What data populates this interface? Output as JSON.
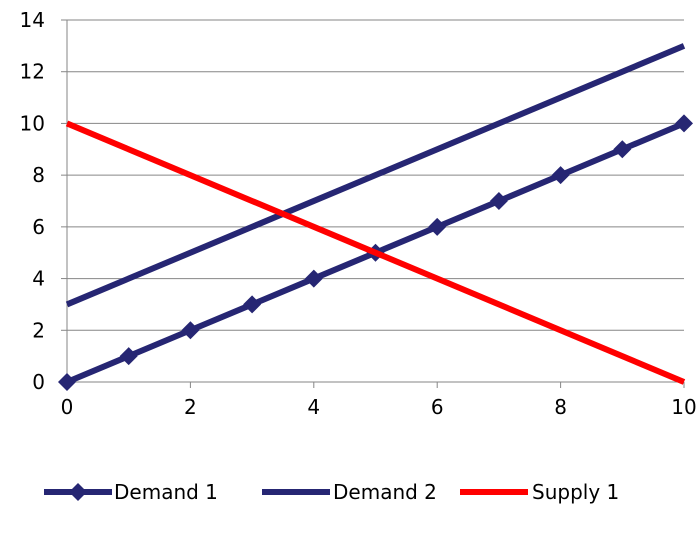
{
  "chart_data": {
    "type": "line",
    "title": "",
    "xlabel": "",
    "ylabel": "",
    "xlim": [
      0,
      10
    ],
    "ylim": [
      0,
      14
    ],
    "x_ticks": [
      0,
      2,
      4,
      6,
      8,
      10
    ],
    "y_ticks": [
      0,
      2,
      4,
      6,
      8,
      10,
      12,
      14
    ],
    "grid": "horizontal",
    "legend_position": "bottom",
    "series": [
      {
        "name": "Demand 1",
        "color": "#262673",
        "marker": "diamond",
        "x": [
          0,
          1,
          2,
          3,
          4,
          5,
          6,
          7,
          8,
          9,
          10
        ],
        "y": [
          0,
          1,
          2,
          3,
          4,
          5,
          6,
          7,
          8,
          9,
          10
        ]
      },
      {
        "name": "Demand 2",
        "color": "#262673",
        "marker": "none",
        "x": [
          0,
          10
        ],
        "y": [
          3,
          13
        ]
      },
      {
        "name": "Supply 1",
        "color": "#ff0000",
        "marker": "none",
        "x": [
          0,
          10
        ],
        "y": [
          10,
          0
        ]
      }
    ]
  }
}
